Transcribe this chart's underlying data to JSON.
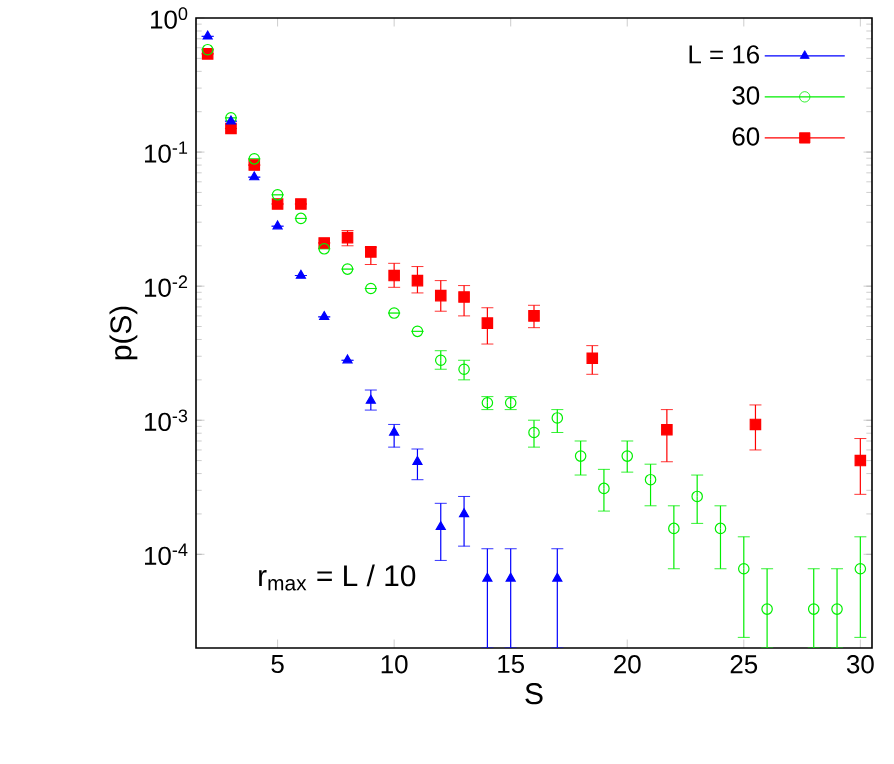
{
  "chart_data": {
    "type": "scatter",
    "xlabel": "S",
    "ylabel": "p(S)",
    "log": "y",
    "legend": "top right",
    "xlim": [
      1.5,
      30.5
    ],
    "xticks": [
      5,
      10,
      15,
      20,
      25,
      30
    ],
    "ylim": [
      2e-05,
      1
    ],
    "yticks": [
      {
        "value": 0.0001,
        "label": "10$^{-4}$"
      },
      {
        "value": 0.001,
        "label": "10$^{-3}$"
      },
      {
        "value": 0.01,
        "label": "10$^{-2}$"
      },
      {
        "value": 0.1,
        "label": "10$^{-1}$"
      },
      {
        "value": 1,
        "label": "10$^{0}$"
      }
    ],
    "annotations": [
      "r$_{max}$ = L / 10"
    ],
    "series": [
      {
        "name": "L = 16",
        "color": "#0000ff",
        "marker": "triangle",
        "x": [
          2,
          3,
          4,
          5,
          6,
          7,
          8,
          9,
          10,
          11,
          12,
          13,
          14,
          15,
          17
        ],
        "values": [
          0.73,
          0.17,
          0.065,
          0.028,
          0.012,
          0.0059,
          0.0028,
          0.0014,
          0.00081,
          0.00049,
          0.00016,
          0.0002,
          6.6e-05,
          6.6e-05,
          6.6e-05
        ],
        "errors": [
          null,
          null,
          null,
          null,
          null,
          null,
          null,
          [
            0.00119,
            0.00168
          ],
          [
            0.00063,
            0.00093
          ],
          [
            0.00036,
            0.00061
          ],
          [
            9e-05,
            0.00024
          ],
          [
            0.000115,
            0.00027
          ],
          [
            2e-05,
            0.00011
          ],
          [
            2e-05,
            0.00011
          ],
          [
            2e-05,
            0.00011
          ]
        ]
      },
      {
        "name": "30",
        "color": "#00ee00",
        "marker": "circle",
        "x": [
          2,
          3,
          4,
          5,
          6,
          7,
          8,
          9,
          10,
          11,
          12,
          13,
          14,
          15,
          16,
          17,
          18,
          19,
          20,
          21,
          22,
          23,
          24,
          25,
          26,
          28,
          29,
          30
        ],
        "values": [
          0.58,
          0.18,
          0.089,
          0.048,
          0.032,
          0.019,
          0.0134,
          0.0096,
          0.0063,
          0.0046,
          0.0028,
          0.0024,
          0.00135,
          0.00135,
          0.00081,
          0.00104,
          0.00054,
          0.00031,
          0.00054,
          0.00036,
          0.000156,
          0.00027,
          0.000156,
          7.8e-05,
          3.9e-05,
          3.9e-05,
          3.9e-05,
          7.8e-05
        ],
        "errors": [
          null,
          null,
          null,
          null,
          null,
          null,
          null,
          null,
          null,
          null,
          [
            0.0024,
            0.0033
          ],
          [
            0.002,
            0.0028
          ],
          [
            0.0012,
            0.0015
          ],
          [
            0.0012,
            0.0015
          ],
          [
            0.00063,
            0.001
          ],
          [
            0.00081,
            0.0012
          ],
          [
            0.00039,
            0.0007
          ],
          [
            0.00021,
            0.00043
          ],
          [
            0.00041,
            0.0007
          ],
          [
            0.00023,
            0.00047
          ],
          [
            7.8e-05,
            0.00023
          ],
          [
            0.00017,
            0.00039
          ],
          [
            7.8e-05,
            0.00023
          ],
          [
            2.4e-05,
            0.000135
          ],
          [
            2e-05,
            7.8e-05
          ],
          [
            2e-05,
            7.8e-05
          ],
          [
            2e-05,
            7.8e-05
          ],
          [
            2.4e-05,
            0.000135
          ]
        ]
      },
      {
        "name": "60",
        "color": "#ff0000",
        "marker": "square",
        "x": [
          2,
          3,
          4,
          5,
          6,
          7,
          8,
          9,
          10,
          11,
          12,
          13,
          14,
          16,
          18.5,
          21.7,
          25.5,
          30
        ],
        "values": [
          0.54,
          0.15,
          0.08,
          0.041,
          0.041,
          0.021,
          0.023,
          0.018,
          0.012,
          0.011,
          0.0085,
          0.0083,
          0.0053,
          0.006,
          0.0029,
          0.00085,
          0.00093,
          0.0005
        ],
        "errors": [
          null,
          null,
          null,
          null,
          null,
          null,
          [
            0.02,
            0.026
          ],
          [
            0.0145,
            0.0195
          ],
          [
            0.0098,
            0.0148
          ],
          [
            0.0089,
            0.014
          ],
          [
            0.0065,
            0.011
          ],
          [
            0.006,
            0.0101
          ],
          [
            0.0037,
            0.0069
          ],
          [
            0.0049,
            0.0072
          ],
          [
            0.0022,
            0.0036
          ],
          [
            0.00049,
            0.0012
          ],
          [
            0.0006,
            0.0013
          ],
          [
            0.00028,
            0.00073
          ]
        ]
      }
    ]
  }
}
